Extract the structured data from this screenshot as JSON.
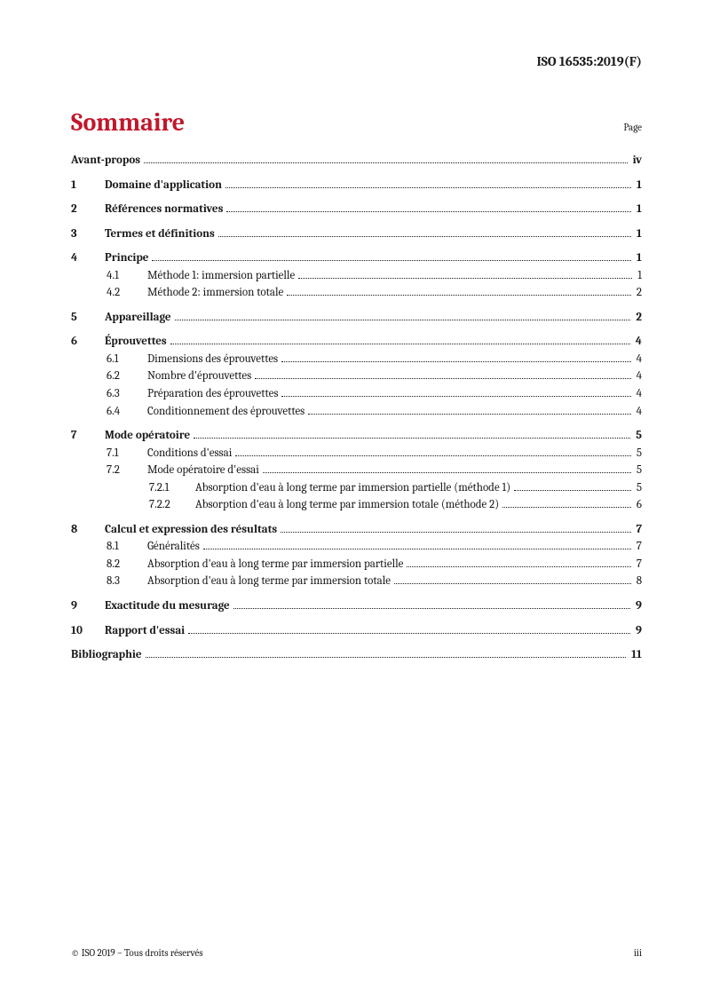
{
  "colors": {
    "accent": "#c1172b",
    "text": "#1a1a1a",
    "bg": "#ffffff"
  },
  "header": {
    "code": "ISO 16535:2019(F)"
  },
  "title": "Sommaire",
  "page_label": "Page",
  "toc": [
    {
      "level": 0,
      "num": "",
      "text": "Avant-propos",
      "page": "iv",
      "bold": true,
      "top": true
    },
    {
      "level": 0,
      "num": "1",
      "text": "Domaine d'application",
      "page": "1",
      "bold": true,
      "top": true
    },
    {
      "level": 0,
      "num": "2",
      "text": "Références normatives",
      "page": "1",
      "bold": true,
      "top": true
    },
    {
      "level": 0,
      "num": "3",
      "text": "Termes et définitions",
      "page": "1",
      "bold": true,
      "top": true
    },
    {
      "level": 0,
      "num": "4",
      "text": "Principe",
      "page": "1",
      "bold": true,
      "top": true
    },
    {
      "level": 1,
      "num": "4.1",
      "text": "Méthode 1: immersion partielle",
      "page": "1"
    },
    {
      "level": 1,
      "num": "4.2",
      "text": "Méthode 2: immersion totale",
      "page": "2"
    },
    {
      "level": 0,
      "num": "5",
      "text": "Appareillage",
      "page": "2",
      "bold": true,
      "top": true
    },
    {
      "level": 0,
      "num": "6",
      "text": "Éprouvettes",
      "page": "4",
      "bold": true,
      "top": true
    },
    {
      "level": 1,
      "num": "6.1",
      "text": "Dimensions des éprouvettes",
      "page": "4"
    },
    {
      "level": 1,
      "num": "6.2",
      "text": "Nombre d'éprouvettes",
      "page": "4"
    },
    {
      "level": 1,
      "num": "6.3",
      "text": "Préparation des éprouvettes",
      "page": "4"
    },
    {
      "level": 1,
      "num": "6.4",
      "text": "Conditionnement des éprouvettes",
      "page": "4"
    },
    {
      "level": 0,
      "num": "7",
      "text": "Mode opératoire",
      "page": "5",
      "bold": true,
      "top": true
    },
    {
      "level": 1,
      "num": "7.1",
      "text": "Conditions d'essai",
      "page": "5"
    },
    {
      "level": 1,
      "num": "7.2",
      "text": "Mode opératoire d'essai",
      "page": "5"
    },
    {
      "level": 2,
      "num": "7.2.1",
      "text": "Absorption d'eau à long terme par immersion partielle (méthode 1)",
      "page": "5"
    },
    {
      "level": 2,
      "num": "7.2.2",
      "text": "Absorption d'eau à long terme par immersion totale (méthode 2)",
      "page": "6"
    },
    {
      "level": 0,
      "num": "8",
      "text": "Calcul et expression des résultats",
      "page": "7",
      "bold": true,
      "top": true
    },
    {
      "level": 1,
      "num": "8.1",
      "text": "Généralités",
      "page": "7"
    },
    {
      "level": 1,
      "num": "8.2",
      "text": "Absorption d'eau à long terme par immersion partielle",
      "page": "7"
    },
    {
      "level": 1,
      "num": "8.3",
      "text": "Absorption d'eau à long terme par immersion totale",
      "page": "8"
    },
    {
      "level": 0,
      "num": "9",
      "text": "Exactitude du mesurage",
      "page": "9",
      "bold": true,
      "top": true
    },
    {
      "level": 0,
      "num": "10",
      "text": "Rapport d'essai",
      "page": "9",
      "bold": true,
      "top": true
    },
    {
      "level": 0,
      "num": "",
      "text": "Bibliographie",
      "page": "11",
      "bold": true,
      "top": true
    }
  ],
  "footer": {
    "left": "© ISO 2019 – Tous droits réservés",
    "right": "iii"
  }
}
